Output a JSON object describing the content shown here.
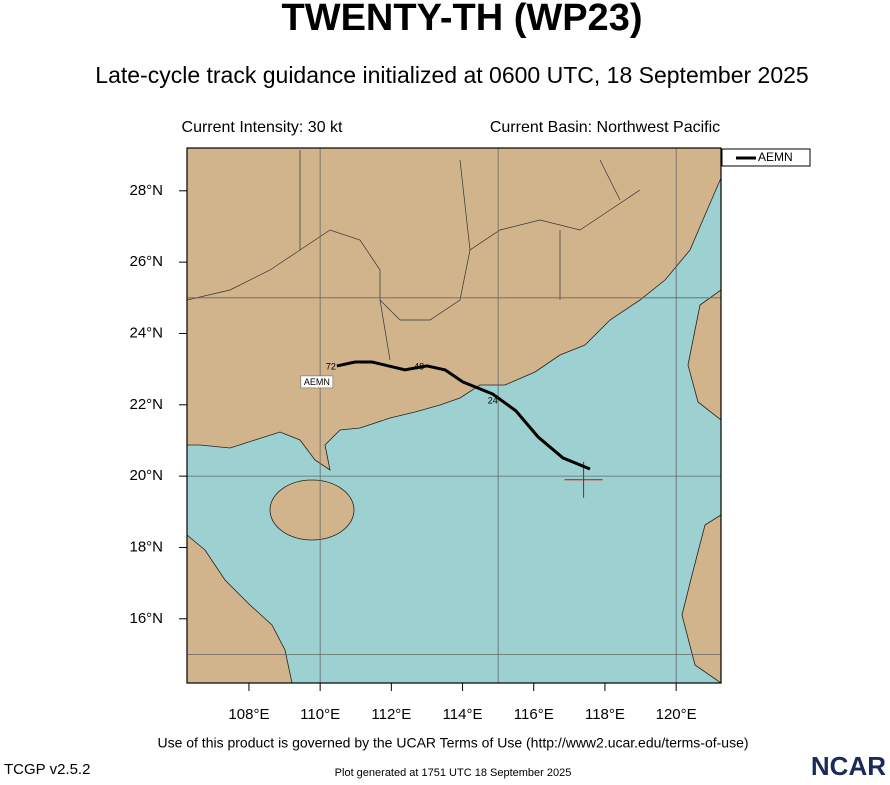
{
  "title": "TWENTY-TH (WP23)",
  "subtitle": "Late-cycle track guidance initialized at 0600 UTC, 18 September 2025",
  "current_intensity": "Current Intensity: 30 kt",
  "current_basin": "Current Basin: Northwest Pacific",
  "map": {
    "xlim": [
      106.26,
      121.26
    ],
    "ylim": [
      14.2,
      29.2
    ],
    "xticks": [
      {
        "value": 108,
        "label": "108°E"
      },
      {
        "value": 110,
        "label": "110°E"
      },
      {
        "value": 112,
        "label": "112°E"
      },
      {
        "value": 114,
        "label": "114°E"
      },
      {
        "value": 116,
        "label": "116°E"
      },
      {
        "value": 118,
        "label": "118°E"
      },
      {
        "value": 120,
        "label": "120°E"
      }
    ],
    "yticks": [
      {
        "value": 16,
        "label": "16°N"
      },
      {
        "value": 18,
        "label": "18°N"
      },
      {
        "value": 20,
        "label": "20°N"
      },
      {
        "value": 22,
        "label": "22°N"
      },
      {
        "value": 24,
        "label": "24°N"
      },
      {
        "value": 26,
        "label": "26°N"
      },
      {
        "value": 28,
        "label": "28°N"
      }
    ],
    "grid_lon": [
      110,
      115,
      120
    ],
    "grid_lat": [
      15,
      20,
      25
    ],
    "current_position": {
      "lon": 117.4,
      "lat": 19.9
    },
    "tracks": [
      {
        "name": "AEMN",
        "color": "#000000",
        "lon": [
          117.58,
          116.82,
          116.12,
          115.5,
          114.85,
          114.01,
          113.51,
          113.0,
          112.38,
          111.46,
          110.98,
          110.47
        ],
        "lat": [
          20.2,
          20.51,
          21.1,
          21.83,
          22.3,
          22.64,
          22.98,
          23.09,
          22.98,
          23.2,
          23.2,
          23.09
        ],
        "hour_labels": [
          {
            "text": "24",
            "lon": 114.85,
            "lat": 22.1
          },
          {
            "text": "48",
            "lon": 112.78,
            "lat": 23.05
          },
          {
            "text": "72",
            "lon": 110.3,
            "lat": 23.05
          }
        ]
      }
    ]
  },
  "footer": {
    "terms": "Use of this product is governed by the UCAR Terms of Use (http://www2.ucar.edu/terms-of-use)",
    "version": "TCGP v2.5.2",
    "generated": "Plot generated at 1751 UTC   18 September 2025",
    "logo": "NCAR"
  }
}
